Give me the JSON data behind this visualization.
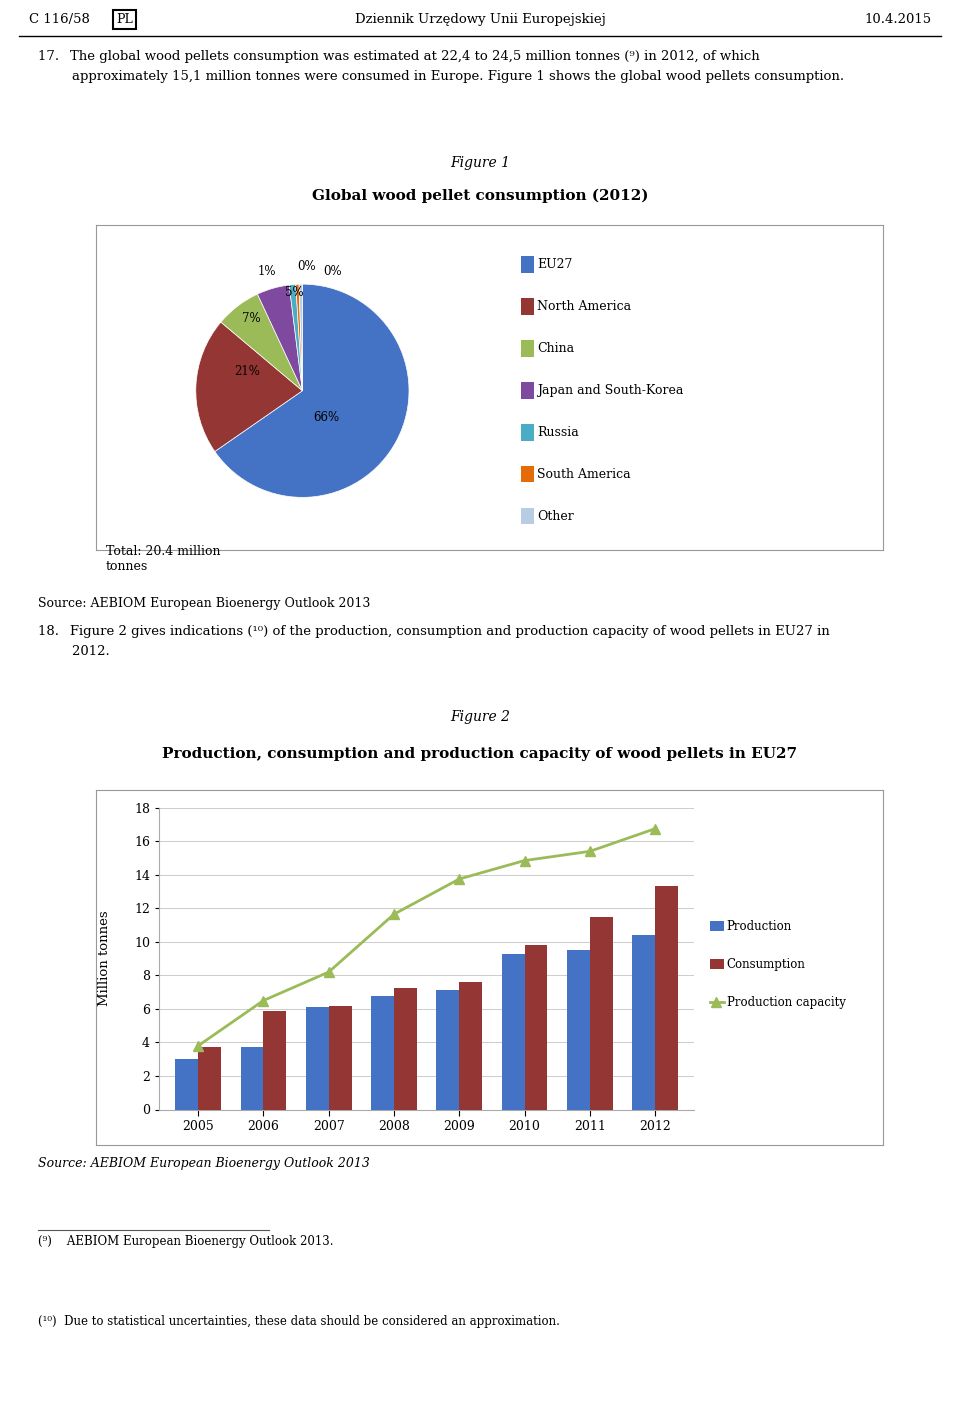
{
  "page_header_left": "C 116/58",
  "page_header_center": "Dziennik Urzędowy Unii Europejskiej",
  "page_header_right": "10.4.2015",
  "page_header_pl": "PL",
  "fig1_caption": "Figure 1",
  "fig1_title": "Global wood pellet consumption (2012)",
  "fig1_labels": [
    "EU27",
    "North America",
    "China",
    "Japan and South-Korea",
    "Russia",
    "South America",
    "Other"
  ],
  "fig1_sizes": [
    66,
    21,
    7,
    5,
    1,
    0.5,
    0.5
  ],
  "fig1_colors": [
    "#4472C4",
    "#943634",
    "#9BBB59",
    "#7F49A0",
    "#4BACC6",
    "#E36C09",
    "#B8CCE4"
  ],
  "fig1_pct_labels": [
    "66%",
    "21%",
    "7%",
    "5%",
    "1%",
    "0%",
    "0%"
  ],
  "fig1_source": "Source: AEBIOM European Bioenergy Outlook 2013",
  "fig1_total": "Total: 20.4 million\ntonnes",
  "fig2_caption": "Figure 2",
  "fig2_title": "Production, consumption and production capacity of wood pellets in EU27",
  "fig2_years": [
    2005,
    2006,
    2007,
    2008,
    2009,
    2010,
    2011,
    2012
  ],
  "fig2_production": [
    3.0,
    3.7,
    6.1,
    6.8,
    7.1,
    9.3,
    9.5,
    10.4
  ],
  "fig2_consumption": [
    3.7,
    5.85,
    6.15,
    7.25,
    7.6,
    9.8,
    11.5,
    13.35
  ],
  "fig2_capacity": [
    3.8,
    6.5,
    8.2,
    11.65,
    13.75,
    14.85,
    15.4,
    16.75
  ],
  "fig2_prod_color": "#4472C4",
  "fig2_cons_color": "#943634",
  "fig2_cap_color": "#9BBB59",
  "fig2_ylabel": "Million tonnes",
  "fig2_ylim": [
    0,
    18
  ],
  "fig2_yticks": [
    0,
    2,
    4,
    6,
    8,
    10,
    12,
    14,
    16,
    18
  ],
  "fig2_source": "Source: AEBIOM European Bioenergy Outlook 2013",
  "footnote1": "(⁹) AEBIOM European Bioenergy Outlook 2013.",
  "footnote2": "(¹⁰) Due to statistical uncertainties, these data should be considered an approximation.",
  "bg_color": "#FFFFFF",
  "text_color": "#000000",
  "border_color": "#AAAAAA"
}
